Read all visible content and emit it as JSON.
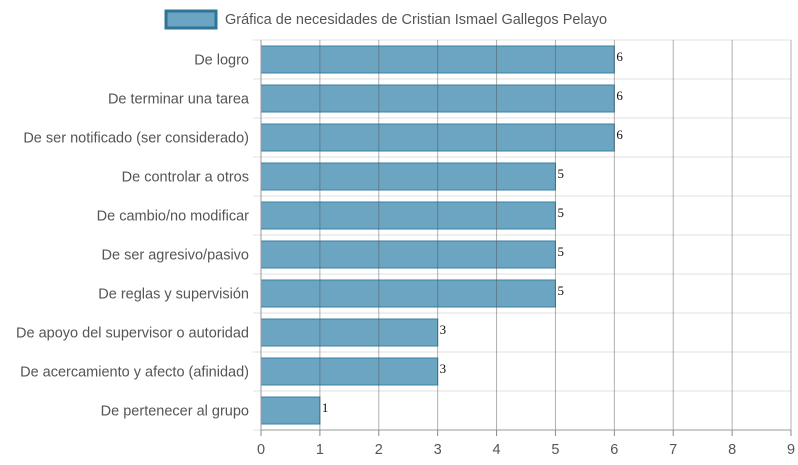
{
  "chart_data": {
    "type": "bar",
    "orientation": "horizontal",
    "title": "",
    "xlabel": "",
    "ylabel": "",
    "categories": [
      "De logro",
      "De terminar una tarea",
      "De ser notificado (ser considerado)",
      "De controlar a otros",
      "De cambio/no modificar",
      "De ser agresivo/pasivo",
      "De reglas y supervisión",
      "De apoyo del supervisor o autoridad",
      "De acercamiento y afecto (afinidad)",
      "De pertenecer al grupo"
    ],
    "series": [
      {
        "name": "Gráfica de necesidades de Cristian Ismael Gallegos Pelayo",
        "values": [
          6,
          6,
          6,
          5,
          5,
          5,
          5,
          3,
          3,
          1
        ],
        "color": "#6ba5c2",
        "border_color": "#3a7fa3"
      }
    ],
    "xlim": [
      0,
      9
    ],
    "x_ticks": [
      "0",
      "1",
      "2",
      "3",
      "4",
      "5",
      "6",
      "7",
      "8",
      "9"
    ],
    "grid": true,
    "legend_position": "top-center",
    "data_labels": true
  }
}
